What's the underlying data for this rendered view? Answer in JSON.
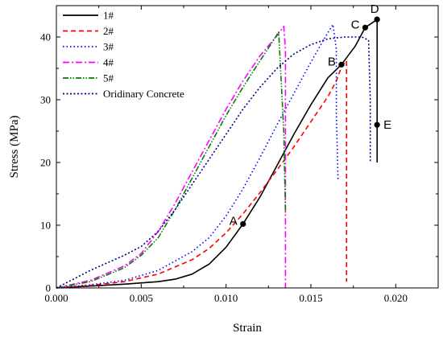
{
  "chart_data": {
    "type": "line",
    "title": "",
    "xlabel": "Strain",
    "ylabel": "Stress (MPa)",
    "xlim": [
      0,
      0.0225
    ],
    "ylim": [
      0,
      45
    ],
    "x_ticks": [
      {
        "value": 0,
        "label": "0.000"
      },
      {
        "value": 0.005,
        "label": "0.005"
      },
      {
        "value": 0.01,
        "label": "0.010"
      },
      {
        "value": 0.015,
        "label": "0.015"
      },
      {
        "value": 0.02,
        "label": "0.020"
      }
    ],
    "y_ticks": [
      {
        "value": 0,
        "label": "0"
      },
      {
        "value": 10,
        "label": "10"
      },
      {
        "value": 20,
        "label": "20"
      },
      {
        "value": 30,
        "label": "30"
      },
      {
        "value": 40,
        "label": "40"
      }
    ],
    "grid": false,
    "legend_position": "top-left",
    "series": [
      {
        "name": "1#",
        "color": "#000000",
        "dash": "solid",
        "points": [
          [
            0,
            0
          ],
          [
            0.002,
            0.3
          ],
          [
            0.004,
            0.6
          ],
          [
            0.006,
            1.0
          ],
          [
            0.007,
            1.4
          ],
          [
            0.008,
            2.2
          ],
          [
            0.009,
            3.8
          ],
          [
            0.01,
            6.5
          ],
          [
            0.011,
            10.2
          ],
          [
            0.012,
            14.5
          ],
          [
            0.013,
            19.5
          ],
          [
            0.014,
            24.5
          ],
          [
            0.015,
            29.2
          ],
          [
            0.016,
            33.5
          ],
          [
            0.0168,
            35.6
          ],
          [
            0.0176,
            38.5
          ],
          [
            0.0182,
            41.5
          ],
          [
            0.0189,
            42.8
          ],
          [
            0.0189,
            40
          ],
          [
            0.0189,
            26
          ],
          [
            0.0189,
            20
          ]
        ]
      },
      {
        "name": "2#",
        "color": "#ff0000",
        "dash": "dash",
        "points": [
          [
            0,
            0
          ],
          [
            0.002,
            0.4
          ],
          [
            0.004,
            1.0
          ],
          [
            0.006,
            2.2
          ],
          [
            0.008,
            4.5
          ],
          [
            0.009,
            6.3
          ],
          [
            0.01,
            8.8
          ],
          [
            0.011,
            11.8
          ],
          [
            0.012,
            15.2
          ],
          [
            0.013,
            18.8
          ],
          [
            0.014,
            22.5
          ],
          [
            0.015,
            26.5
          ],
          [
            0.016,
            30.5
          ],
          [
            0.0165,
            33
          ],
          [
            0.0168,
            35.2
          ],
          [
            0.0171,
            36.2
          ],
          [
            0.0171,
            20
          ],
          [
            0.0171,
            1
          ]
        ]
      },
      {
        "name": "3#",
        "color": "#0000ff",
        "dash": "dot",
        "points": [
          [
            0,
            0
          ],
          [
            0.002,
            0.5
          ],
          [
            0.004,
            1.2
          ],
          [
            0.006,
            2.8
          ],
          [
            0.008,
            5.8
          ],
          [
            0.009,
            8
          ],
          [
            0.01,
            11.5
          ],
          [
            0.011,
            15.8
          ],
          [
            0.012,
            20.8
          ],
          [
            0.013,
            26
          ],
          [
            0.014,
            31
          ],
          [
            0.015,
            36
          ],
          [
            0.0158,
            39.8
          ],
          [
            0.0163,
            42
          ],
          [
            0.0165,
            38
          ],
          [
            0.0165,
            28
          ],
          [
            0.0166,
            17
          ]
        ]
      },
      {
        "name": "4#",
        "color": "#ff00ff",
        "dash": "dashdot",
        "points": [
          [
            0,
            0
          ],
          [
            0.002,
            1.2
          ],
          [
            0.004,
            3.5
          ],
          [
            0.005,
            5.5
          ],
          [
            0.006,
            9
          ],
          [
            0.007,
            13.5
          ],
          [
            0.008,
            18.5
          ],
          [
            0.009,
            23.5
          ],
          [
            0.01,
            28.5
          ],
          [
            0.011,
            33
          ],
          [
            0.012,
            37
          ],
          [
            0.013,
            40.2
          ],
          [
            0.0134,
            41.7
          ],
          [
            0.0135,
            38
          ],
          [
            0.0135,
            20
          ],
          [
            0.0135,
            0
          ]
        ]
      },
      {
        "name": "5#",
        "color": "#008000",
        "dash": "dashdotdot",
        "points": [
          [
            0,
            0
          ],
          [
            0.002,
            1
          ],
          [
            0.004,
            3.2
          ],
          [
            0.005,
            5.2
          ],
          [
            0.006,
            8
          ],
          [
            0.007,
            12.5
          ],
          [
            0.008,
            17.5
          ],
          [
            0.009,
            22.5
          ],
          [
            0.01,
            27.5
          ],
          [
            0.011,
            32
          ],
          [
            0.012,
            36.2
          ],
          [
            0.0128,
            39.5
          ],
          [
            0.0131,
            40.8
          ],
          [
            0.0134,
            25
          ],
          [
            0.0135,
            12
          ]
        ]
      },
      {
        "name": "Oridinary Concrete",
        "color": "#00008b",
        "dash": "shortdot",
        "points": [
          [
            0,
            0
          ],
          [
            0.002,
            2.8
          ],
          [
            0.004,
            5.2
          ],
          [
            0.005,
            6.6
          ],
          [
            0.006,
            9
          ],
          [
            0.007,
            12.5
          ],
          [
            0.008,
            16.5
          ],
          [
            0.009,
            20.5
          ],
          [
            0.01,
            24.5
          ],
          [
            0.011,
            28.5
          ],
          [
            0.012,
            32
          ],
          [
            0.013,
            35
          ],
          [
            0.014,
            37.3
          ],
          [
            0.015,
            38.8
          ],
          [
            0.016,
            39.7
          ],
          [
            0.017,
            40
          ],
          [
            0.018,
            40
          ],
          [
            0.0184,
            39.5
          ],
          [
            0.0185,
            30
          ],
          [
            0.0185,
            20
          ]
        ]
      }
    ],
    "annotations": [
      {
        "label": "A",
        "x": 0.011,
        "y": 10.2,
        "pos": "left"
      },
      {
        "label": "B",
        "x": 0.0168,
        "y": 35.6,
        "pos": "left"
      },
      {
        "label": "C",
        "x": 0.0182,
        "y": 41.5,
        "pos": "left"
      },
      {
        "label": "D",
        "x": 0.0189,
        "y": 42.8,
        "pos": "top"
      },
      {
        "label": "E",
        "x": 0.0189,
        "y": 26.0,
        "pos": "right"
      }
    ]
  }
}
